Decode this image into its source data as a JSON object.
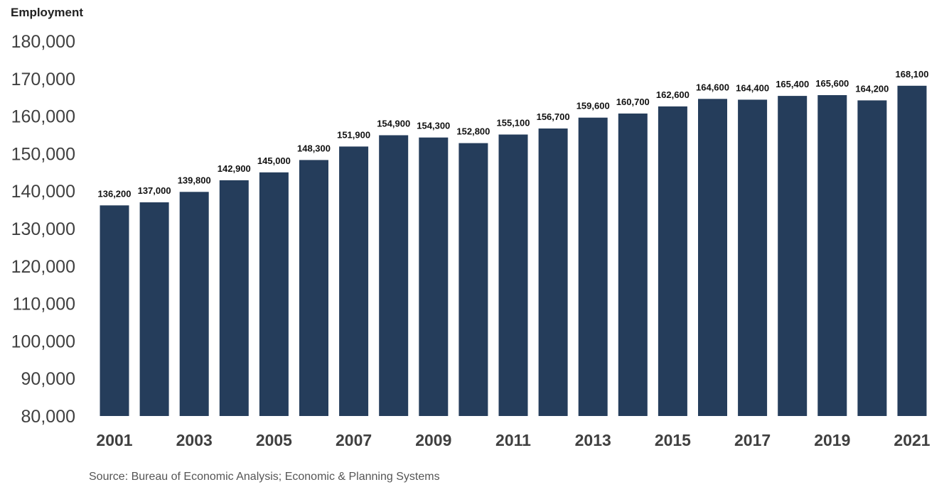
{
  "chart_data": {
    "type": "bar",
    "ylabel": "Employment",
    "xlabel": "",
    "title": "",
    "ylim": [
      80000,
      180000
    ],
    "ytick_step": 10000,
    "yticks": [
      "80,000",
      "90,000",
      "100,000",
      "110,000",
      "120,000",
      "130,000",
      "140,000",
      "150,000",
      "160,000",
      "170,000",
      "180,000"
    ],
    "categories": [
      "2001",
      "2002",
      "2003",
      "2004",
      "2005",
      "2006",
      "2007",
      "2008",
      "2009",
      "2010",
      "2011",
      "2012",
      "2013",
      "2014",
      "2015",
      "2016",
      "2017",
      "2018",
      "2019",
      "2020",
      "2021"
    ],
    "x_tick_labels": [
      "2001",
      "",
      "2003",
      "",
      "2005",
      "",
      "2007",
      "",
      "2009",
      "",
      "2011",
      "",
      "2013",
      "",
      "2015",
      "",
      "2017",
      "",
      "2019",
      "",
      "2021"
    ],
    "values": [
      136200,
      137000,
      139800,
      142900,
      145000,
      148300,
      151900,
      154900,
      154300,
      152800,
      155100,
      156700,
      159600,
      160700,
      162600,
      164600,
      164400,
      165400,
      165600,
      164200,
      168100
    ],
    "data_labels": [
      "136,200",
      "137,000",
      "139,800",
      "142,900",
      "145,000",
      "148,300",
      "151,900",
      "154,900",
      "154,300",
      "152,800",
      "155,100",
      "156,700",
      "159,600",
      "160,700",
      "162,600",
      "164,600",
      "164,400",
      "165,400",
      "165,600",
      "164,200",
      "168,100"
    ],
    "bar_color": "#253d5b",
    "grid": false,
    "legend": "none"
  },
  "source_note": "Source: Bureau of Economic Analysis; Economic & Planning Systems"
}
